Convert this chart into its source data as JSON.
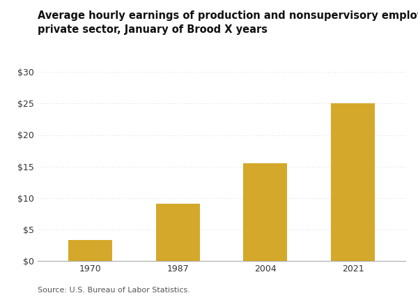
{
  "title_line1": "Average hourly earnings of production and nonsupervisory employees in the",
  "title_line2": "private sector, January of Brood X years",
  "categories": [
    "1970",
    "1987",
    "2004",
    "2021"
  ],
  "values": [
    3.35,
    9.14,
    15.54,
    25.08
  ],
  "bar_color": "#D4A82A",
  "ylim": [
    0,
    30
  ],
  "yticks": [
    0,
    5,
    10,
    15,
    20,
    25,
    30
  ],
  "source_text": "Source: U.S. Bureau of Labor Statistics.",
  "title_fontsize": 10.5,
  "tick_fontsize": 9,
  "source_fontsize": 8,
  "background_color": "#ffffff",
  "bar_width": 0.5,
  "grid_color": "#cccccc",
  "spine_color": "#aaaaaa"
}
